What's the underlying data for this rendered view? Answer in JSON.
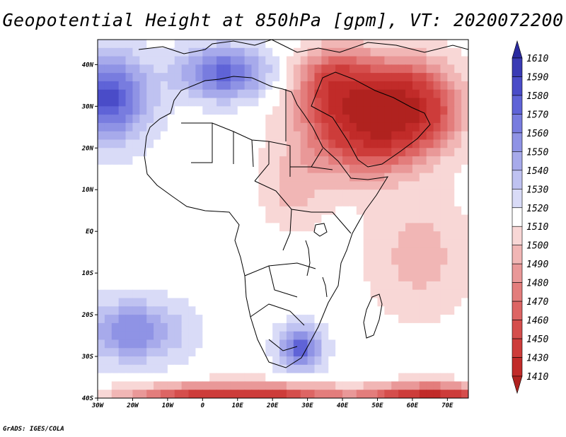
{
  "title": "Geopotential Height at 850hPa [gpm], VT: 2020072200",
  "credit": "GrADS: IGES/COLA",
  "map": {
    "projection": "latlon",
    "lon_range": [
      -30,
      76
    ],
    "lat_range": [
      -40,
      46
    ],
    "x_ticks": [
      {
        "lon": -30,
        "label": "30W"
      },
      {
        "lon": -20,
        "label": "20W"
      },
      {
        "lon": -10,
        "label": "10W"
      },
      {
        "lon": 0,
        "label": "0"
      },
      {
        "lon": 10,
        "label": "10E"
      },
      {
        "lon": 20,
        "label": "20E"
      },
      {
        "lon": 30,
        "label": "30E"
      },
      {
        "lon": 40,
        "label": "40E"
      },
      {
        "lon": 50,
        "label": "50E"
      },
      {
        "lon": 60,
        "label": "60E"
      },
      {
        "lon": 70,
        "label": "70E"
      }
    ],
    "y_ticks": [
      {
        "lat": -40,
        "label": "40S"
      },
      {
        "lat": -30,
        "label": "30S"
      },
      {
        "lat": -20,
        "label": "20S"
      },
      {
        "lat": -10,
        "label": "10S"
      },
      {
        "lat": 0,
        "label": "EQ"
      },
      {
        "lat": 10,
        "label": "10N"
      },
      {
        "lat": 20,
        "label": "20N"
      },
      {
        "lat": 30,
        "label": "30N"
      },
      {
        "lat": 40,
        "label": "40N"
      }
    ],
    "field_features": [
      {
        "lon": 45,
        "lat": 25,
        "value": 1440,
        "spread_lon": 16,
        "spread_lat": 11
      },
      {
        "lon": 58,
        "lat": 30,
        "value": 1425,
        "spread_lon": 14,
        "spread_lat": 10
      },
      {
        "lon": 38,
        "lat": 36,
        "value": 1460,
        "spread_lon": 10,
        "spread_lat": 8
      },
      {
        "lon": 62,
        "lat": -6,
        "value": 1495,
        "spread_lon": 14,
        "spread_lat": 14
      },
      {
        "lon": 26,
        "lat": 10,
        "value": 1497,
        "spread_lon": 9,
        "spread_lat": 9
      },
      {
        "lon": -28,
        "lat": 32,
        "value": 1585,
        "spread_lon": 12,
        "spread_lat": 10
      },
      {
        "lon": 6,
        "lat": 38,
        "value": 1575,
        "spread_lon": 12,
        "spread_lat": 6
      },
      {
        "lon": 28,
        "lat": -28,
        "value": 1575,
        "spread_lon": 6,
        "spread_lat": 5
      },
      {
        "lon": -20,
        "lat": -24,
        "value": 1560,
        "spread_lon": 14,
        "spread_lat": 7
      },
      {
        "lon": 10,
        "lat": -40,
        "value": 1420,
        "spread_lon": 28,
        "spread_lat": 3
      },
      {
        "lon": 65,
        "lat": -40,
        "value": 1420,
        "spread_lon": 16,
        "spread_lat": 3
      }
    ],
    "border_color": "#000000"
  },
  "colorbar": {
    "levels": [
      1410,
      1430,
      1450,
      1460,
      1470,
      1480,
      1490,
      1500,
      1510,
      1520,
      1530,
      1540,
      1550,
      1560,
      1570,
      1580,
      1590,
      1610
    ],
    "colors": [
      "#b0221f",
      "#c12b29",
      "#cd3c3a",
      "#d54e4c",
      "#dd6564",
      "#e37d7c",
      "#e99898",
      "#f1b6b5",
      "#f8d7d6",
      "#ffffff",
      "#d9dbf7",
      "#bfc2f1",
      "#a7aaeb",
      "#8f93e5",
      "#787cdf",
      "#5f63d7",
      "#4a4cc8",
      "#3a3bb4",
      "#2a2aa0"
    ]
  }
}
